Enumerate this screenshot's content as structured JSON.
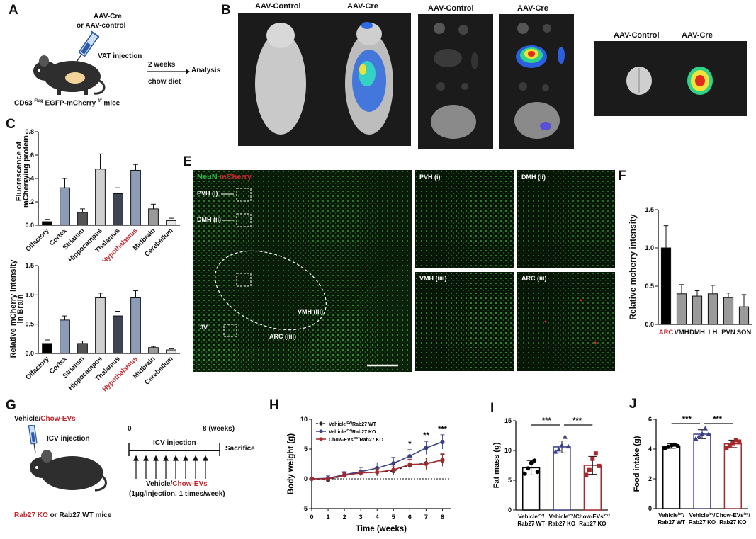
{
  "panels": {
    "A": {
      "letter": "A",
      "virus_a": "AAV-Cre",
      "virus_b": "or  AAV-control",
      "injection": "VAT injection",
      "time": "2 weeks",
      "diet": "chow diet",
      "analysis": "Analysis",
      "mice_prefix": "CD63 ",
      "mice_sup1": "Flag",
      "mice_mid": " EGFP-mCherry ",
      "mice_sup2": "f/f",
      "mice_suffix": " mice"
    },
    "B": {
      "letter": "B",
      "ctrl": "AAV-Control",
      "cre": "AAV-Cre"
    },
    "C": {
      "letter": "C",
      "ylabel_top_1": "Fluorescence of",
      "ylabel_top_2": "mCherry/ug protein",
      "ylabel_bot_1": "Relative mCherry intensity",
      "ylabel_bot_2": "in Brain"
    },
    "E": {
      "letter": "E",
      "neun": "NeuN",
      "mcherry": "mCherry",
      "pvh": "PVH (i)",
      "dmh": "DMH (ii)",
      "vmh": "VMH (iii)",
      "arc": "ARC (iiii)",
      "v3": "3V",
      "arc_sub": "ARC (iii)",
      "vmh_sub": "VMH (iiii)"
    },
    "F": {
      "letter": "F",
      "ylabel": "Relative mcherry intensity"
    },
    "G": {
      "letter": "G",
      "vehicle": "Vehicle",
      "slash": "/",
      "chow": "Chow-EVs",
      "icv": "ICV injection",
      "zero": "0",
      "eight": "8 (weeks)",
      "icv2": "ICV injection",
      "sacrifice": "Sacrifice",
      "vehicle2": "Vehicle/",
      "chow2": "Chow-EVs",
      "dose": "(1μg/injection, 1 times/week)",
      "ko": "Rab27 KO",
      "mice": " or Rab27 WT mice"
    },
    "H": {
      "letter": "H"
    },
    "I": {
      "letter": "I"
    },
    "J": {
      "letter": "J"
    }
  },
  "chart_data": [
    {
      "id": "C_top",
      "type": "bar",
      "categories": [
        "Olfactory",
        "Cortex",
        "Striatum",
        "Hippocampus",
        "Thalamus",
        "Hypothalamus",
        "Midbrain",
        "Cerebellum"
      ],
      "values": [
        0.03,
        0.32,
        0.11,
        0.48,
        0.27,
        0.47,
        0.14,
        0.04
      ],
      "errors": [
        0.02,
        0.08,
        0.03,
        0.13,
        0.05,
        0.05,
        0.04,
        0.02
      ],
      "colors": [
        "#000000",
        "#8d9cb6",
        "#545454",
        "#d0d0d0",
        "#3d4452",
        "#8d9cb6",
        "#9a9a9a",
        "#e6e6e6"
      ],
      "highlight": "Hypothalamus",
      "yticks": [
        "0.0",
        "0.2",
        "0.4",
        "0.6",
        "0.8"
      ],
      "ylim": [
        0,
        0.8
      ]
    },
    {
      "id": "C_bottom",
      "type": "bar",
      "categories": [
        "Olfactory",
        "Cortex",
        "Striatum",
        "Hippocampus",
        "Thalamus",
        "Hypothalamus",
        "Midbrain",
        "Cerebellum"
      ],
      "values": [
        0.17,
        0.57,
        0.17,
        0.95,
        0.64,
        0.95,
        0.1,
        0.06
      ],
      "errors": [
        0.06,
        0.07,
        0.04,
        0.08,
        0.08,
        0.12,
        0.02,
        0.02
      ],
      "colors": [
        "#000000",
        "#8d9cb6",
        "#545454",
        "#d0d0d0",
        "#3d4452",
        "#8d9cb6",
        "#9a9a9a",
        "#e6e6e6"
      ],
      "highlight": "Hypothalamus",
      "yticks": [
        "0.0",
        "0.5",
        "1.0",
        "1.5"
      ],
      "ylim": [
        0,
        1.5
      ]
    },
    {
      "id": "F",
      "type": "bar",
      "categories": [
        "ARC",
        "VMH",
        "DMH",
        "LH",
        "PVN",
        "SON"
      ],
      "values": [
        1.0,
        0.4,
        0.37,
        0.4,
        0.35,
        0.23
      ],
      "errors": [
        0.29,
        0.12,
        0.07,
        0.11,
        0.06,
        0.16
      ],
      "colors": [
        "#000000",
        "#9a9a9a",
        "#9a9a9a",
        "#9a9a9a",
        "#9a9a9a",
        "#9a9a9a"
      ],
      "highlight": "ARC",
      "yticks": [
        "0.0",
        "0.5",
        "1.0",
        "1.5"
      ],
      "ylim": [
        0,
        1.5
      ]
    },
    {
      "id": "H",
      "type": "line",
      "xlabel": "Time (weeks)",
      "ylabel": "Body weight (g)",
      "x": [
        0,
        1,
        2,
        3,
        4,
        5,
        6,
        7,
        8
      ],
      "xticks": [
        "0",
        "1",
        "2",
        "3",
        "4",
        "5",
        "6",
        "7",
        "8"
      ],
      "yticks": [
        "-5",
        "0",
        "5",
        "10"
      ],
      "ylim": [
        -5,
        10
      ],
      "series": [
        {
          "name_a": "Vehicle",
          "name_sup": "icv",
          "name_b": "/Rab27 WT",
          "color": "#222222",
          "dashed": true,
          "values": [
            0,
            -0.2,
            0.6,
            1.0,
            1.1,
            1.3,
            2.3,
            2.6,
            3.1
          ],
          "err": [
            0.2,
            0.3,
            0.4,
            0.5,
            0.6,
            0.7,
            0.9,
            0.9,
            1.0
          ]
        },
        {
          "name_a": "Vehicle",
          "name_sup": "icv",
          "name_b": "/Rab27 KO",
          "color": "#3a3f86",
          "dashed": false,
          "values": [
            0,
            0.1,
            0.7,
            1.2,
            1.8,
            2.6,
            3.8,
            5.2,
            6.2
          ],
          "err": [
            0.2,
            0.4,
            0.5,
            0.7,
            0.9,
            1.0,
            1.1,
            1.1,
            1.2
          ]
        },
        {
          "name_a": "Chow-EVs",
          "name_sup": "icv",
          "name_b": "/Rab27 KO",
          "color": "#a32a2f",
          "dashed": false,
          "values": [
            0,
            0.0,
            0.6,
            1.0,
            1.1,
            1.5,
            2.4,
            2.5,
            3.2
          ],
          "err": [
            0.2,
            0.3,
            0.4,
            0.5,
            0.6,
            0.8,
            0.9,
            1.0,
            1.0
          ]
        }
      ],
      "annotations": [
        {
          "x": 6,
          "text": "*"
        },
        {
          "x": 7,
          "text": "**"
        },
        {
          "x": 8,
          "text": "***"
        }
      ]
    },
    {
      "id": "I",
      "type": "bar",
      "ylabel": "Fat mass (g)",
      "yticks": [
        "0",
        "5",
        "10",
        "15"
      ],
      "ylim": [
        0,
        15
      ],
      "groups": [
        {
          "l1a": "Vehicle",
          "l1s": "icv",
          "l1b": "/",
          "l2": "Rab27 WT",
          "value": 7.1,
          "err": 1.2,
          "color": "#000000",
          "points": [
            6.1,
            7.0,
            7.9,
            8.3,
            6.4
          ]
        },
        {
          "l1a": "Vehicle",
          "l1s": "icv",
          "l1b": "/",
          "l2": "Rab27 KO",
          "value": 10.6,
          "err": 1.0,
          "color": "#3a3f86",
          "points": [
            9.8,
            10.2,
            10.9,
            12.3,
            10.7
          ]
        },
        {
          "l1a": "Chow-EVs",
          "l1s": "icv",
          "l1b": "/",
          "l2": "Rab27 KO",
          "value": 7.5,
          "err": 1.5,
          "color": "#a32a2f",
          "points": [
            5.9,
            6.7,
            8.6,
            9.5,
            7.4
          ]
        }
      ],
      "sig": [
        "***",
        "***"
      ]
    },
    {
      "id": "J",
      "type": "bar",
      "ylabel": "Food intake (g)",
      "yticks": [
        "0",
        "2",
        "4",
        "6"
      ],
      "ylim": [
        0,
        6
      ],
      "groups": [
        {
          "l1a": "Vehicle",
          "l1s": "icv",
          "l1b": "/",
          "l2": "Rab27 WT",
          "value": 4.2,
          "err": 0.15,
          "color": "#000000",
          "points": [
            4.05,
            4.15,
            4.25,
            4.3,
            4.2
          ]
        },
        {
          "l1a": "Vehicle",
          "l1s": "icv",
          "l1b": "/",
          "l2": "Rab27 KO",
          "value": 5.0,
          "err": 0.3,
          "color": "#3a3f86",
          "points": [
            4.7,
            4.85,
            5.05,
            5.4,
            5.0
          ]
        },
        {
          "l1a": "Chow-EVs",
          "l1s": "icv",
          "l1b": "/",
          "l2": "Rab27 KO",
          "value": 4.35,
          "err": 0.25,
          "color": "#a32a2f",
          "points": [
            4.05,
            4.2,
            4.4,
            4.6,
            4.5
          ]
        }
      ],
      "sig": [
        "***",
        "***"
      ]
    }
  ]
}
